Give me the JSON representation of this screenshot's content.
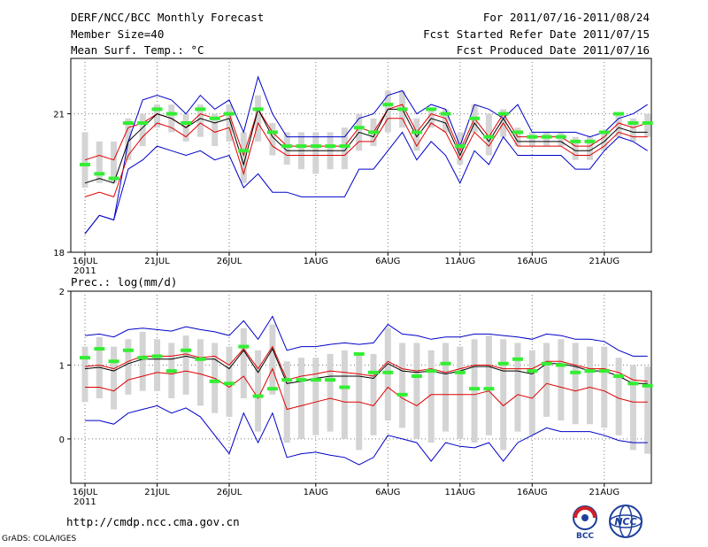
{
  "header": {
    "title": "DERF/NCC/BCC Monthly Forecast",
    "member_size": "Member Size=40",
    "variable": "Mean Surf. Temp.: °C",
    "period": "For 2011/07/16-2011/08/24",
    "started": "Fcst Started Refer Date 2011/07/15",
    "produced": "Fcst Produced Date 2011/07/16"
  },
  "footer": {
    "url": "http://cmdp.ncc.cma.gov.cn",
    "grads": "GrADS: COLA/IGES",
    "logo_bcc": "BCC",
    "logo_ncc": "NCC"
  },
  "colors": {
    "envelope": "#0000c8",
    "band": "#e00000",
    "mean": "#000000",
    "box": "#d4d4d4",
    "obs": "#33ee33"
  },
  "chart_data": [
    {
      "type": "line",
      "title": "Mean Surf. Temp.: °C",
      "xlabel": "",
      "ylabel": "°C",
      "ylim": [
        18,
        22.2
      ],
      "yticks": [
        18,
        21
      ],
      "x": [
        1,
        2,
        3,
        4,
        5,
        6,
        7,
        8,
        9,
        10,
        11,
        12,
        13,
        14,
        15,
        16,
        17,
        18,
        19,
        20,
        21,
        22,
        23,
        24,
        25,
        26,
        27,
        28,
        29,
        30,
        31,
        32,
        33,
        34,
        35,
        36,
        37,
        38,
        39,
        40
      ],
      "xtick_positions": [
        1,
        6,
        11,
        17,
        22,
        27,
        32,
        37
      ],
      "xtick_labels": [
        "16JUL",
        "21JUL",
        "26JUL",
        "1AUG",
        "6AUG",
        "11AUG",
        "16AUG",
        "21AUG"
      ],
      "year_label": "2011",
      "series": [
        {
          "name": "max",
          "values": [
            18.4,
            18.8,
            18.7,
            20.4,
            21.3,
            21.4,
            21.3,
            21.0,
            21.4,
            21.1,
            21.3,
            20.6,
            21.8,
            21.0,
            20.5,
            20.5,
            20.5,
            20.5,
            20.5,
            20.9,
            21.0,
            21.4,
            21.5,
            21.0,
            21.2,
            21.1,
            20.3,
            21.2,
            21.1,
            20.9,
            21.2,
            20.6,
            20.6,
            20.6,
            20.6,
            20.5,
            20.6,
            20.9,
            21.0,
            21.2
          ]
        },
        {
          "name": "upper",
          "values": [
            20.0,
            20.1,
            20.0,
            20.7,
            20.8,
            21.0,
            20.9,
            20.7,
            21.0,
            20.9,
            21.0,
            20.1,
            21.1,
            20.6,
            20.3,
            20.3,
            20.3,
            20.3,
            20.3,
            20.7,
            20.6,
            21.1,
            21.2,
            20.6,
            21.0,
            20.9,
            20.2,
            20.9,
            20.5,
            21.0,
            20.5,
            20.5,
            20.5,
            20.5,
            20.3,
            20.3,
            20.5,
            20.8,
            20.7,
            20.8
          ]
        },
        {
          "name": "mean",
          "values": [
            19.5,
            19.6,
            19.5,
            20.4,
            20.7,
            21.0,
            20.9,
            20.7,
            20.9,
            20.8,
            20.9,
            19.9,
            21.1,
            20.5,
            20.2,
            20.2,
            20.2,
            20.2,
            20.2,
            20.6,
            20.5,
            21.1,
            21.1,
            20.5,
            20.9,
            20.8,
            20.1,
            20.8,
            20.4,
            20.9,
            20.4,
            20.4,
            20.4,
            20.4,
            20.2,
            20.2,
            20.4,
            20.7,
            20.6,
            20.6
          ]
        },
        {
          "name": "lower",
          "values": [
            19.2,
            19.3,
            19.2,
            20.1,
            20.5,
            20.8,
            20.7,
            20.5,
            20.8,
            20.6,
            20.7,
            19.7,
            20.8,
            20.3,
            20.1,
            20.1,
            20.1,
            20.1,
            20.1,
            20.4,
            20.4,
            20.9,
            20.9,
            20.3,
            20.8,
            20.6,
            20.0,
            20.6,
            20.3,
            20.8,
            20.3,
            20.3,
            20.3,
            20.3,
            20.1,
            20.1,
            20.3,
            20.6,
            20.5,
            20.5
          ]
        },
        {
          "name": "min",
          "values": [
            18.4,
            18.8,
            18.7,
            19.8,
            20.0,
            20.3,
            20.2,
            20.1,
            20.2,
            20.0,
            20.1,
            19.4,
            19.7,
            19.3,
            19.3,
            19.2,
            19.2,
            19.2,
            19.2,
            19.8,
            19.8,
            20.2,
            20.6,
            20.0,
            20.4,
            20.1,
            19.5,
            20.2,
            19.9,
            20.5,
            20.1,
            20.1,
            20.1,
            20.1,
            19.8,
            19.8,
            20.2,
            20.5,
            20.4,
            20.2
          ]
        }
      ],
      "boxes": {
        "low": [
          19.4,
          19.5,
          19.5,
          20.0,
          20.3,
          20.7,
          20.6,
          20.4,
          20.5,
          20.3,
          20.4,
          19.5,
          20.4,
          20.1,
          19.9,
          19.8,
          19.7,
          19.8,
          19.8,
          20.2,
          20.3,
          20.6,
          20.7,
          20.2,
          20.7,
          20.6,
          19.9,
          20.6,
          20.1,
          20.5,
          20.3,
          20.3,
          20.3,
          20.3,
          20.0,
          20.0,
          20.2,
          20.5,
          20.4,
          20.5
        ],
        "high": [
          20.6,
          20.4,
          20.4,
          20.9,
          21.0,
          21.2,
          21.2,
          21.0,
          21.2,
          21.0,
          21.2,
          20.6,
          21.4,
          20.8,
          20.6,
          20.6,
          20.6,
          20.6,
          20.7,
          21.0,
          20.9,
          21.5,
          21.5,
          20.9,
          21.1,
          21.1,
          20.6,
          21.2,
          21.0,
          21.1,
          20.7,
          20.6,
          20.6,
          20.6,
          20.5,
          20.5,
          20.6,
          21.0,
          20.9,
          21.0
        ]
      },
      "observed": [
        19.9,
        19.7,
        19.6,
        20.8,
        20.8,
        21.1,
        21.0,
        20.8,
        21.1,
        20.9,
        21.0,
        20.2,
        21.1,
        20.6,
        20.3,
        20.3,
        20.3,
        20.3,
        20.3,
        20.7,
        20.6,
        21.2,
        21.1,
        20.6,
        21.1,
        21.0,
        20.3,
        20.9,
        20.5,
        21.0,
        20.6,
        20.5,
        20.5,
        20.5,
        20.4,
        20.4,
        20.6,
        21.0,
        20.8,
        20.8
      ]
    },
    {
      "type": "line",
      "title": "Prec.: log(mm/d)",
      "xlabel": "",
      "ylabel": "log(mm/d)",
      "ylim": [
        -0.6,
        2
      ],
      "yticks": [
        0,
        1,
        2
      ],
      "x": [
        1,
        2,
        3,
        4,
        5,
        6,
        7,
        8,
        9,
        10,
        11,
        12,
        13,
        14,
        15,
        16,
        17,
        18,
        19,
        20,
        21,
        22,
        23,
        24,
        25,
        26,
        27,
        28,
        29,
        30,
        31,
        32,
        33,
        34,
        35,
        36,
        37,
        38,
        39,
        40
      ],
      "xtick_positions": [
        1,
        6,
        11,
        17,
        22,
        27,
        32,
        37
      ],
      "xtick_labels": [
        "16JUL",
        "21JUL",
        "26JUL",
        "1AUG",
        "6AUG",
        "11AUG",
        "16AUG",
        "21AUG"
      ],
      "year_label": "2011",
      "series": [
        {
          "name": "max",
          "values": [
            1.4,
            1.42,
            1.38,
            1.48,
            1.5,
            1.48,
            1.46,
            1.52,
            1.48,
            1.45,
            1.4,
            1.6,
            1.35,
            1.66,
            1.2,
            1.25,
            1.25,
            1.28,
            1.3,
            1.28,
            1.3,
            1.55,
            1.42,
            1.4,
            1.35,
            1.38,
            1.38,
            1.42,
            1.42,
            1.4,
            1.38,
            1.35,
            1.42,
            1.4,
            1.35,
            1.35,
            1.32,
            1.2,
            1.12,
            1.12
          ]
        },
        {
          "name": "upper",
          "values": [
            0.98,
            1.0,
            0.95,
            1.05,
            1.12,
            1.12,
            1.12,
            1.15,
            1.1,
            1.12,
            1.0,
            1.22,
            0.95,
            1.25,
            0.8,
            0.85,
            0.88,
            0.92,
            0.9,
            0.88,
            0.85,
            1.05,
            0.95,
            0.92,
            0.95,
            0.9,
            0.95,
            1.0,
            1.0,
            0.95,
            0.95,
            0.95,
            1.05,
            1.05,
            1.0,
            0.95,
            0.95,
            0.9,
            0.8,
            0.78
          ]
        },
        {
          "name": "mean",
          "values": [
            0.95,
            0.97,
            0.92,
            1.02,
            1.08,
            1.08,
            1.08,
            1.12,
            1.08,
            1.08,
            0.95,
            1.2,
            0.9,
            1.22,
            0.75,
            0.78,
            0.82,
            0.85,
            0.85,
            0.85,
            0.82,
            1.02,
            0.92,
            0.9,
            0.92,
            0.88,
            0.92,
            0.98,
            0.98,
            0.92,
            0.92,
            0.88,
            1.02,
            1.02,
            0.98,
            0.92,
            0.92,
            0.85,
            0.75,
            0.75
          ]
        },
        {
          "name": "lower",
          "values": [
            0.7,
            0.7,
            0.65,
            0.8,
            0.85,
            0.9,
            0.88,
            0.92,
            0.88,
            0.82,
            0.7,
            0.85,
            0.55,
            0.95,
            0.4,
            0.45,
            0.5,
            0.55,
            0.5,
            0.5,
            0.45,
            0.7,
            0.55,
            0.45,
            0.6,
            0.6,
            0.6,
            0.6,
            0.65,
            0.45,
            0.6,
            0.55,
            0.75,
            0.7,
            0.65,
            0.7,
            0.65,
            0.55,
            0.5,
            0.5
          ]
        },
        {
          "name": "min",
          "values": [
            0.25,
            0.25,
            0.2,
            0.35,
            0.4,
            0.45,
            0.35,
            0.42,
            0.3,
            0.05,
            -0.2,
            0.35,
            -0.05,
            0.35,
            -0.25,
            -0.2,
            -0.18,
            -0.22,
            -0.25,
            -0.35,
            -0.25,
            0.05,
            0.0,
            -0.05,
            -0.3,
            -0.05,
            -0.1,
            -0.12,
            -0.05,
            -0.3,
            -0.05,
            0.05,
            0.15,
            0.1,
            0.1,
            0.1,
            0.05,
            -0.02,
            -0.05,
            -0.05
          ]
        }
      ],
      "boxes": {
        "low": [
          0.5,
          0.55,
          0.4,
          0.6,
          0.65,
          0.65,
          0.55,
          0.6,
          0.45,
          0.35,
          0.3,
          0.55,
          0.1,
          0.6,
          -0.05,
          0.0,
          0.05,
          0.1,
          0.0,
          -0.15,
          0.05,
          0.25,
          0.15,
          0.0,
          -0.05,
          0.1,
          0.0,
          -0.05,
          0.05,
          -0.15,
          0.1,
          0.05,
          0.3,
          0.25,
          0.2,
          0.2,
          0.15,
          0.05,
          -0.15,
          -0.2
        ],
        "high": [
          1.25,
          1.38,
          1.25,
          1.35,
          1.45,
          1.35,
          1.3,
          1.4,
          1.35,
          1.3,
          1.25,
          1.5,
          1.2,
          1.55,
          1.05,
          1.1,
          1.1,
          1.15,
          1.2,
          1.15,
          1.15,
          1.5,
          1.3,
          1.3,
          1.2,
          1.3,
          1.25,
          1.35,
          1.4,
          1.35,
          1.3,
          1.2,
          1.3,
          1.35,
          1.3,
          1.25,
          1.25,
          1.1,
          1.0,
          0.98
        ]
      },
      "observed": [
        1.1,
        1.22,
        1.05,
        1.2,
        1.1,
        1.12,
        0.92,
        1.2,
        1.08,
        0.78,
        0.75,
        1.25,
        0.58,
        0.68,
        0.8,
        0.8,
        0.8,
        0.8,
        0.7,
        1.15,
        0.9,
        0.9,
        0.6,
        0.85,
        0.92,
        1.02,
        0.9,
        0.68,
        0.68,
        1.02,
        1.08,
        0.92,
        1.02,
        1.0,
        0.9,
        0.92,
        0.92,
        0.85,
        0.75,
        0.72
      ]
    }
  ]
}
